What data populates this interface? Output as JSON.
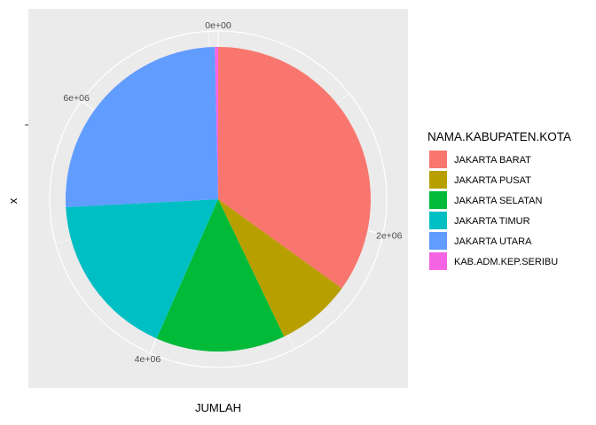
{
  "chart_data": {
    "type": "pie",
    "xlabel": "JUMLAH",
    "ylabel": "x",
    "radial_ticks": [
      "0e+00",
      "2e+06",
      "4e+06",
      "6e+06"
    ],
    "radial_tick_values": [
      0,
      2000000,
      4000000,
      6000000
    ],
    "legend_title": "NAMA.KABUPATEN.KOTA",
    "legend_position": "right",
    "series": [
      {
        "name": "JAKARTA BARAT",
        "value": 2470000,
        "color": "#F8766D"
      },
      {
        "name": "JAKARTA PUSAT",
        "value": 560000,
        "color": "#B79F00"
      },
      {
        "name": "JAKARTA SELATAN",
        "value": 970000,
        "color": "#00BA38"
      },
      {
        "name": "JAKARTA TIMUR",
        "value": 1240000,
        "color": "#00BFC4"
      },
      {
        "name": "JAKARTA UTARA",
        "value": 1800000,
        "color": "#619CFF"
      },
      {
        "name": "KAB.ADM.KEP.SERIBU",
        "value": 25000,
        "color": "#F564E3"
      }
    ],
    "total": 7065000,
    "panel_background": "#EBEBEB",
    "grid": true
  }
}
